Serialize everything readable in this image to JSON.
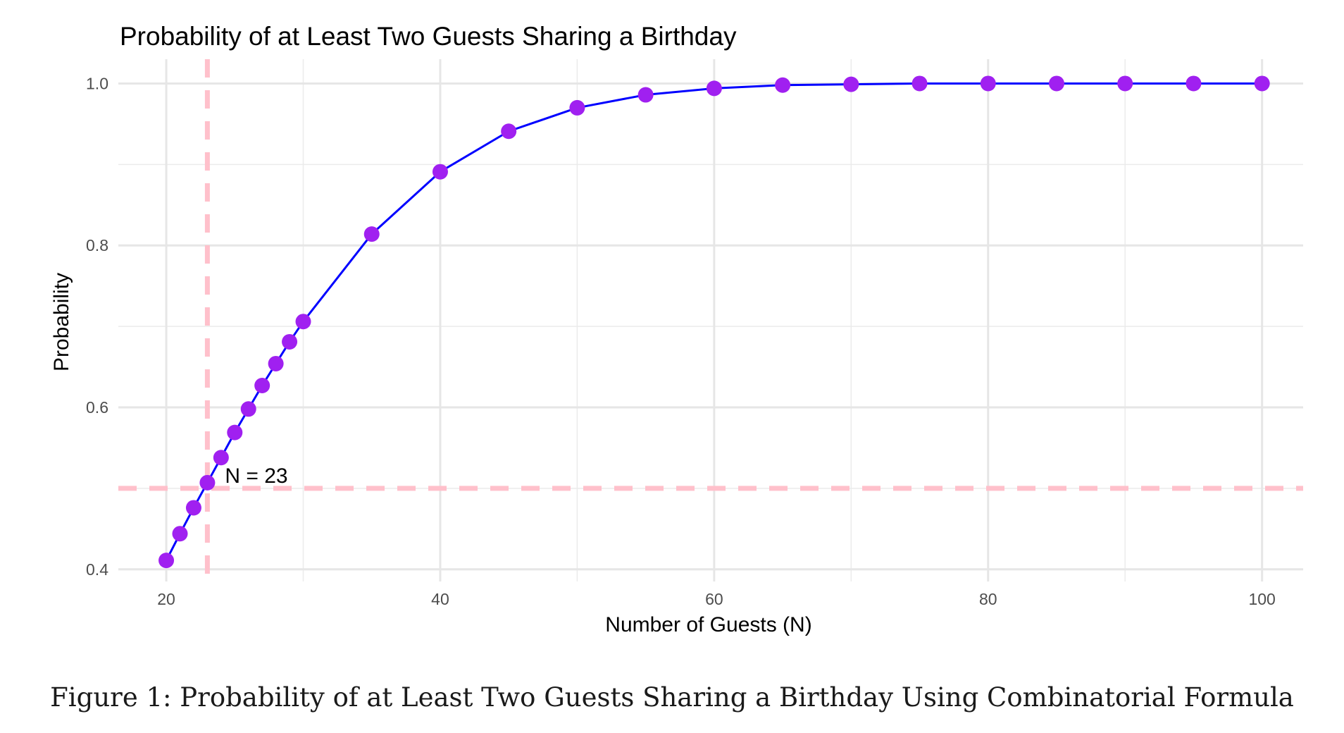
{
  "chart_data": {
    "type": "line",
    "title": "Probability of at Least Two Guests Sharing a Birthday",
    "xlabel": "Number of Guests (N)",
    "ylabel": "Probability",
    "xlim": [
      16.5,
      103
    ],
    "ylim": [
      0.385,
      1.03
    ],
    "xticks": [
      20,
      40,
      60,
      80,
      100
    ],
    "xtick_labels": [
      "20",
      "40",
      "60",
      "80",
      "100"
    ],
    "yticks": [
      0.4,
      0.6,
      0.8,
      1.0
    ],
    "ytick_labels": [
      "0.4",
      "0.6",
      "0.8",
      "1.0"
    ],
    "grid": true,
    "series": [
      {
        "x": [
          20,
          21,
          22,
          23,
          24,
          25,
          26,
          27,
          28,
          29,
          30,
          35,
          40,
          45,
          50,
          55,
          60,
          65,
          70,
          75,
          80,
          85,
          90,
          95,
          100
        ],
        "values": [
          0.411,
          0.444,
          0.476,
          0.507,
          0.538,
          0.569,
          0.598,
          0.627,
          0.654,
          0.681,
          0.706,
          0.814,
          0.891,
          0.941,
          0.97,
          0.986,
          0.994,
          0.998,
          0.999,
          1.0,
          1.0,
          1.0,
          1.0,
          1.0,
          1.0
        ],
        "line_color": "#0000ff",
        "point_color": "#a020f0"
      }
    ],
    "reference_lines": {
      "vertical_x": 23,
      "horizontal_y": 0.5,
      "color": "#ffc0cb"
    },
    "annotation": {
      "text": "N = 23",
      "x": 23,
      "y": 0.5
    }
  },
  "caption": {
    "label": "Figure 1:",
    "text": "Probability of at Least Two Guests Sharing a Birthday Using Combinatorial Formula"
  }
}
